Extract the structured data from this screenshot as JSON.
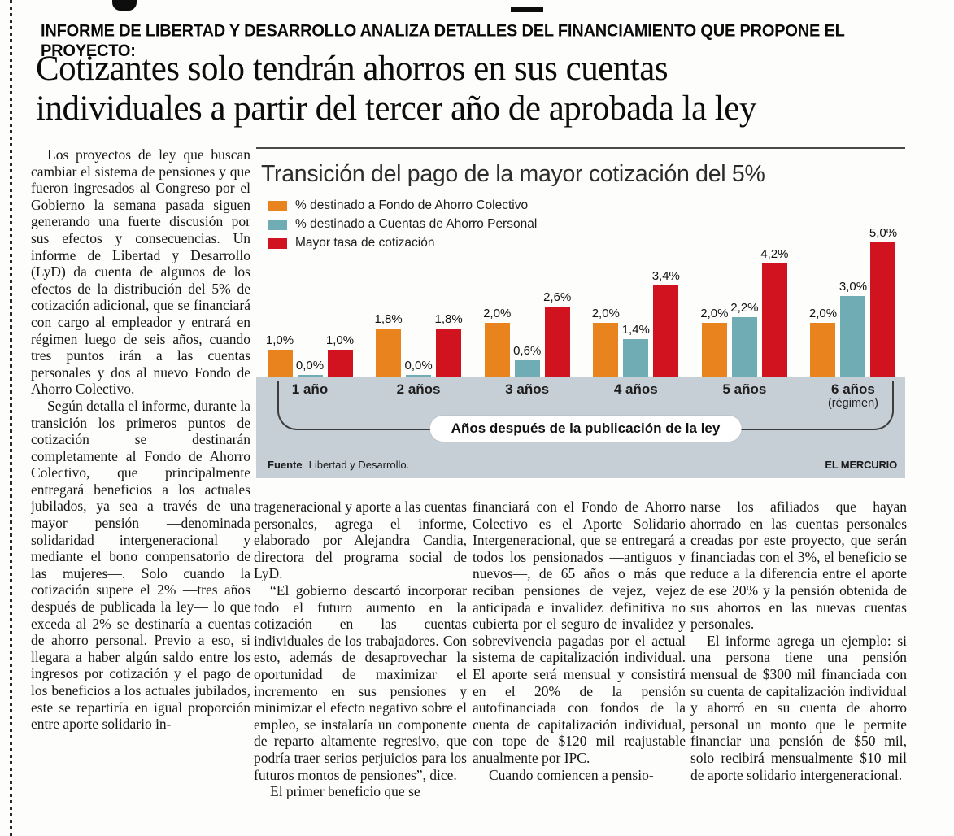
{
  "page": {
    "kicker": "INFORME DE LIBERTAD Y DESARROLLO ANALIZA DETALLES DEL FINANCIAMIENTO QUE PROPONE EL PROYECTO:",
    "headline": "Cotizantes solo tendrán ahorros en sus cuentas\nindividuales a partir del tercer año de aprobada la ley"
  },
  "article": {
    "column1": [
      {
        "indent": true,
        "text": "Los proyectos de ley que buscan cambiar el sistema de pensiones y que fueron ingresados al Congreso por el Gobierno la semana pasada siguen generando una fuerte discusión por sus efectos y consecuencias. Un informe de Libertad y Desarrollo (LyD) da cuenta de algunos de los efectos de la distribución del 5% de cotización adicional, que se financiará con cargo al empleador y entrará en régimen luego de seis años, cuando tres puntos irán a las cuentas personales y dos al nuevo Fondo de Ahorro Colectivo."
      },
      {
        "indent": true,
        "text": "Según detalla el informe, durante la transición los primeros puntos de cotización se destinarán completamente al Fondo de Ahorro Colectivo, que principalmente entregará beneficios a los actuales jubilados, ya sea a través de una mayor pensión —denominada solidaridad intergeneracional y mediante el bono compensatorio de las mujeres—. Solo cuando la cotización supere el 2% —tres años después de publicada la ley— lo que exceda al 2% se destinaría a cuentas de ahorro personal. Previo a eso, si llegara a haber algún saldo entre los ingresos por cotización y el pago de los beneficios a los actuales jubilados, este se repartiría en igual proporción entre aporte solidario in-"
      }
    ],
    "column2": [
      {
        "indent": false,
        "text": "trageneracional y aporte a las cuentas personales, agrega el informe, elaborado por Alejandra Candia, directora del programa social de LyD."
      },
      {
        "indent": true,
        "text": "“El gobierno descartó incorporar todo el futuro aumento en la cotización en las cuentas individuales de los trabajadores. Con esto, además de desaprovechar la oportunidad de maximizar el incremento en sus pensiones y minimizar el efecto negativo sobre el empleo, se instalaría un componente de reparto altamente regresivo, que podría traer serios perjuicios para los futuros montos de pensiones”, dice."
      },
      {
        "indent": true,
        "text": "El primer beneficio que se"
      }
    ],
    "column3": [
      {
        "indent": false,
        "text": "financiará con el Fondo de Ahorro Colectivo es el Aporte Solidario Intergeneracional, que se entregará a todos los pensionados —antiguos y nuevos—, de 65 años o más que reciban pensiones de vejez, vejez anticipada e invalidez definitiva no cubierta por el seguro de invalidez y sobrevivencia pagadas por el actual sistema de capitalización individual. El aporte será mensual y consistirá en el 20% de la pensión autofinanciada con fondos de la cuenta de capitalización individual, con tope de $120 mil reajustable anualmente por IPC."
      },
      {
        "indent": true,
        "text": "Cuando comiencen a pensio-"
      }
    ],
    "column4": [
      {
        "indent": false,
        "text": "narse los afiliados que hayan ahorrado en las cuentas personales creadas por este proyecto, que serán financiadas con el 3%, el beneficio se reduce a la diferencia entre el aporte de ese 20% y la pensión obtenida de sus ahorros en las nuevas cuentas personales."
      },
      {
        "indent": true,
        "text": "El informe agrega un ejemplo: si una persona tiene una pensión mensual de $300 mil financiada con su cuenta de capitalización individual y ahorró en su cuenta de ahorro personal un monto que le permite financiar una pensión de $50 mil, solo recibirá mensualmente $10 mil de aporte solidario intergeneracional."
      }
    ]
  },
  "chart_data": {
    "type": "bar",
    "title": "Transición del pago de la mayor cotización del 5%",
    "categories": [
      "1 año",
      "2 años",
      "3 años",
      "4 años",
      "5 años",
      "6 años"
    ],
    "category_sublabels": [
      "",
      "",
      "",
      "",
      "",
      "(régimen)"
    ],
    "series": [
      {
        "name": "% destinado a Fondo de Ahorro Colectivo",
        "color": "#E8831D",
        "values": [
          1.0,
          1.8,
          2.0,
          2.0,
          2.0,
          2.0
        ],
        "labels": [
          "1,0%",
          "1,8%",
          "2,0%",
          "2,0%",
          "2,0%",
          "2,0%"
        ]
      },
      {
        "name": "% destinado a Cuentas de Ahorro Personal",
        "color": "#6FACB4",
        "values": [
          0.0,
          0.0,
          0.6,
          1.4,
          2.2,
          3.0
        ],
        "labels": [
          "0,0%",
          "0,0%",
          "0,6%",
          "1,4%",
          "2,2%",
          "3,0%"
        ]
      },
      {
        "name": "Mayor tasa de cotización",
        "color": "#D1121F",
        "values": [
          1.0,
          1.8,
          2.6,
          3.4,
          4.2,
          5.0
        ],
        "labels": [
          "1,0%",
          "1,8%",
          "2,6%",
          "3,4%",
          "4,2%",
          "5,0%"
        ]
      }
    ],
    "xlabel": "Años después de la publicación de la ley",
    "ylim": [
      0,
      5.5
    ],
    "legend_position": "top-left",
    "grid": false,
    "source_label": "Fuente",
    "source": "Libertad y Desarrollo.",
    "credit": "EL MERCURIO"
  }
}
